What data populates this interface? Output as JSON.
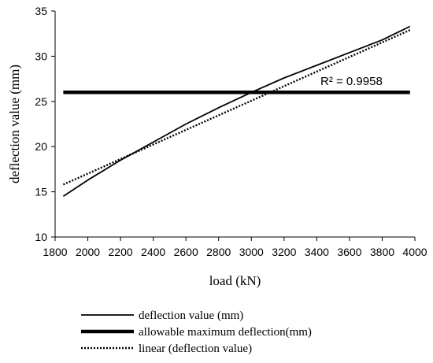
{
  "chart_data": {
    "type": "line",
    "xlabel": "load (kN)",
    "ylabel": "deflection value (mm)",
    "xlim": [
      1800,
      4000
    ],
    "ylim": [
      10,
      35
    ],
    "x_ticks": [
      1800,
      2000,
      2200,
      2400,
      2600,
      2800,
      3000,
      3200,
      3400,
      3600,
      3800,
      4000
    ],
    "y_ticks": [
      10,
      15,
      20,
      25,
      30,
      35
    ],
    "grid": false,
    "legend_position": "bottom",
    "annotation": "R² = 0.9958",
    "series": [
      {
        "name": "deflection value (mm)",
        "style": "solid-thin",
        "color": "#000000",
        "x": [
          1850,
          2000,
          2200,
          2400,
          2600,
          2800,
          3000,
          3200,
          3400,
          3600,
          3800,
          3970
        ],
        "y": [
          14.5,
          16.3,
          18.5,
          20.5,
          22.5,
          24.3,
          26.0,
          27.6,
          29.0,
          30.4,
          31.8,
          33.3
        ]
      },
      {
        "name": "allowable maximum deflection(mm)",
        "style": "solid-thick",
        "color": "#000000",
        "x": [
          1850,
          3970
        ],
        "y": [
          26,
          26
        ]
      },
      {
        "name": "linear (deflection value)",
        "style": "dotted",
        "color": "#000000",
        "x": [
          1850,
          3970
        ],
        "y": [
          15.8,
          32.9
        ]
      }
    ]
  }
}
